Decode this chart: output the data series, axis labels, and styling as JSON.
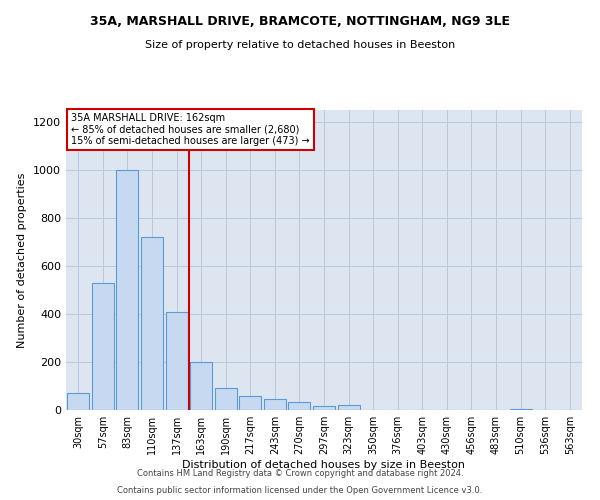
{
  "title": "35A, MARSHALL DRIVE, BRAMCOTE, NOTTINGHAM, NG9 3LE",
  "subtitle": "Size of property relative to detached houses in Beeston",
  "xlabel": "Distribution of detached houses by size in Beeston",
  "ylabel": "Number of detached properties",
  "footnote1": "Contains HM Land Registry data © Crown copyright and database right 2024.",
  "footnote2": "Contains public sector information licensed under the Open Government Licence v3.0.",
  "bar_labels": [
    "30sqm",
    "57sqm",
    "83sqm",
    "110sqm",
    "137sqm",
    "163sqm",
    "190sqm",
    "217sqm",
    "243sqm",
    "270sqm",
    "297sqm",
    "323sqm",
    "350sqm",
    "376sqm",
    "403sqm",
    "430sqm",
    "456sqm",
    "483sqm",
    "510sqm",
    "536sqm",
    "563sqm"
  ],
  "bar_values": [
    70,
    530,
    1000,
    720,
    410,
    200,
    90,
    60,
    45,
    35,
    15,
    20,
    0,
    0,
    0,
    0,
    0,
    0,
    5,
    0,
    0
  ],
  "bar_color": "#c6d9f0",
  "bar_edge_color": "#5b9bd5",
  "ylim": [
    0,
    1250
  ],
  "yticks": [
    0,
    200,
    400,
    600,
    800,
    1000,
    1200
  ],
  "annotation_title": "35A MARSHALL DRIVE: 162sqm",
  "annotation_line1": "← 85% of detached houses are smaller (2,680)",
  "annotation_line2": "15% of semi-detached houses are larger (473) →",
  "vline_color": "#cc0000",
  "annotation_box_color": "#ffffff",
  "annotation_box_edge": "#cc0000",
  "background_color": "#ffffff",
  "plot_bg_color": "#dde6f0"
}
